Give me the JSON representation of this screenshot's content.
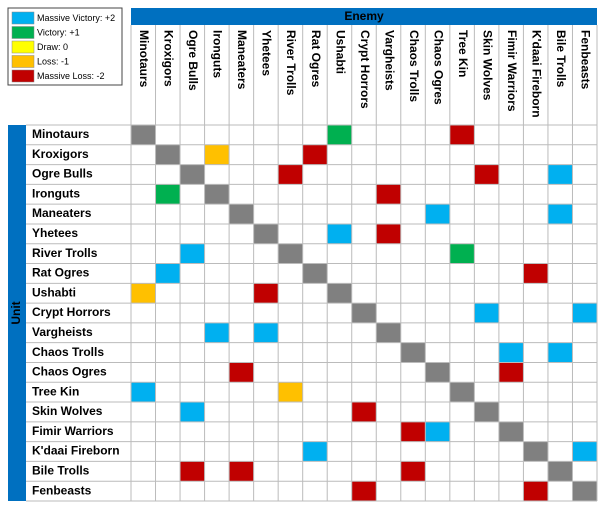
{
  "legend": [
    {
      "label": "Massive Victory: +2",
      "value": 2,
      "color": "#00b0f0"
    },
    {
      "label": "Victory: +1",
      "value": 1,
      "color": "#00b050"
    },
    {
      "label": "Draw: 0",
      "value": 0,
      "color": "#ffff00"
    },
    {
      "label": "Loss: -1",
      "value": -1,
      "color": "#ffc000"
    },
    {
      "label": "Massive Loss: -2",
      "value": -2,
      "color": "#c00000"
    }
  ],
  "column_header": "Enemy",
  "row_header": "Unit",
  "diagonal_color": "#808080",
  "header_color": "#0070c0",
  "columns": [
    "Minotaurs",
    "Kroxigors",
    "Ogre Bulls",
    "Ironguts",
    "Maneaters",
    "Yhetees",
    "River Trolls",
    "Rat Ogres",
    "Ushabti",
    "Crypt Horrors",
    "Vargheists",
    "Chaos Trolls",
    "Chaos Ogres",
    "Tree Kin",
    "Skin Wolves",
    "Fimir Warriors",
    "K'daai Fireborn",
    "Bile Trolls",
    "Fenbeasts"
  ],
  "rows": [
    {
      "name": "Minotaurs",
      "values": [
        null,
        null,
        null,
        null,
        null,
        null,
        null,
        null,
        1,
        null,
        null,
        null,
        null,
        -2,
        null,
        null,
        null,
        null,
        null
      ]
    },
    {
      "name": "Kroxigors",
      "values": [
        null,
        null,
        null,
        -1,
        null,
        null,
        null,
        -2,
        null,
        null,
        null,
        null,
        null,
        null,
        null,
        null,
        null,
        null,
        null
      ]
    },
    {
      "name": "Ogre Bulls",
      "values": [
        null,
        null,
        null,
        null,
        null,
        null,
        -2,
        null,
        null,
        null,
        null,
        null,
        null,
        null,
        -2,
        null,
        null,
        2,
        null
      ]
    },
    {
      "name": "Ironguts",
      "values": [
        null,
        1,
        null,
        null,
        null,
        null,
        null,
        null,
        null,
        null,
        -2,
        null,
        null,
        null,
        null,
        null,
        null,
        null,
        null
      ]
    },
    {
      "name": "Maneaters",
      "values": [
        null,
        null,
        null,
        null,
        null,
        null,
        null,
        null,
        null,
        null,
        null,
        null,
        2,
        null,
        null,
        null,
        null,
        2,
        null
      ]
    },
    {
      "name": "Yhetees",
      "values": [
        null,
        null,
        null,
        null,
        null,
        null,
        null,
        null,
        2,
        null,
        -2,
        null,
        null,
        null,
        null,
        null,
        null,
        null,
        null
      ]
    },
    {
      "name": "River Trolls",
      "values": [
        null,
        null,
        2,
        null,
        null,
        null,
        null,
        null,
        null,
        null,
        null,
        null,
        null,
        1,
        null,
        null,
        null,
        null,
        null
      ]
    },
    {
      "name": "Rat Ogres",
      "values": [
        null,
        2,
        null,
        null,
        null,
        null,
        null,
        null,
        null,
        null,
        null,
        null,
        null,
        null,
        null,
        null,
        -2,
        null,
        null
      ]
    },
    {
      "name": "Ushabti",
      "values": [
        -1,
        null,
        null,
        null,
        null,
        -2,
        null,
        null,
        null,
        null,
        null,
        null,
        null,
        null,
        null,
        null,
        null,
        null,
        null
      ]
    },
    {
      "name": "Crypt Horrors",
      "values": [
        null,
        null,
        null,
        null,
        null,
        null,
        null,
        null,
        null,
        null,
        null,
        null,
        null,
        null,
        2,
        null,
        null,
        null,
        2
      ]
    },
    {
      "name": "Vargheists",
      "values": [
        null,
        null,
        null,
        2,
        null,
        2,
        null,
        null,
        null,
        null,
        null,
        null,
        null,
        null,
        null,
        null,
        null,
        null,
        null
      ]
    },
    {
      "name": "Chaos Trolls",
      "values": [
        null,
        null,
        null,
        null,
        null,
        null,
        null,
        null,
        null,
        null,
        null,
        null,
        null,
        null,
        null,
        2,
        null,
        2,
        null
      ]
    },
    {
      "name": "Chaos Ogres",
      "values": [
        null,
        null,
        null,
        null,
        -2,
        null,
        null,
        null,
        null,
        null,
        null,
        null,
        null,
        null,
        null,
        -2,
        null,
        null,
        null
      ]
    },
    {
      "name": "Tree Kin",
      "values": [
        2,
        null,
        null,
        null,
        null,
        null,
        -1,
        null,
        null,
        null,
        null,
        null,
        null,
        null,
        null,
        null,
        null,
        null,
        null
      ]
    },
    {
      "name": "Skin Wolves",
      "values": [
        null,
        null,
        2,
        null,
        null,
        null,
        null,
        null,
        null,
        -2,
        null,
        null,
        null,
        null,
        null,
        null,
        null,
        null,
        null
      ]
    },
    {
      "name": "Fimir Warriors",
      "values": [
        null,
        null,
        null,
        null,
        null,
        null,
        null,
        null,
        null,
        null,
        null,
        -2,
        2,
        null,
        null,
        null,
        null,
        null,
        null
      ]
    },
    {
      "name": "K'daai Fireborn",
      "values": [
        null,
        null,
        null,
        null,
        null,
        null,
        null,
        2,
        null,
        null,
        null,
        null,
        null,
        null,
        null,
        null,
        null,
        null,
        2
      ]
    },
    {
      "name": "Bile Trolls",
      "values": [
        null,
        null,
        -2,
        null,
        -2,
        null,
        null,
        null,
        null,
        null,
        null,
        -2,
        null,
        null,
        null,
        null,
        null,
        null,
        null
      ]
    },
    {
      "name": "Fenbeasts",
      "values": [
        null,
        null,
        null,
        null,
        null,
        null,
        null,
        null,
        null,
        -2,
        null,
        null,
        null,
        null,
        null,
        null,
        -2,
        null,
        null
      ]
    }
  ]
}
